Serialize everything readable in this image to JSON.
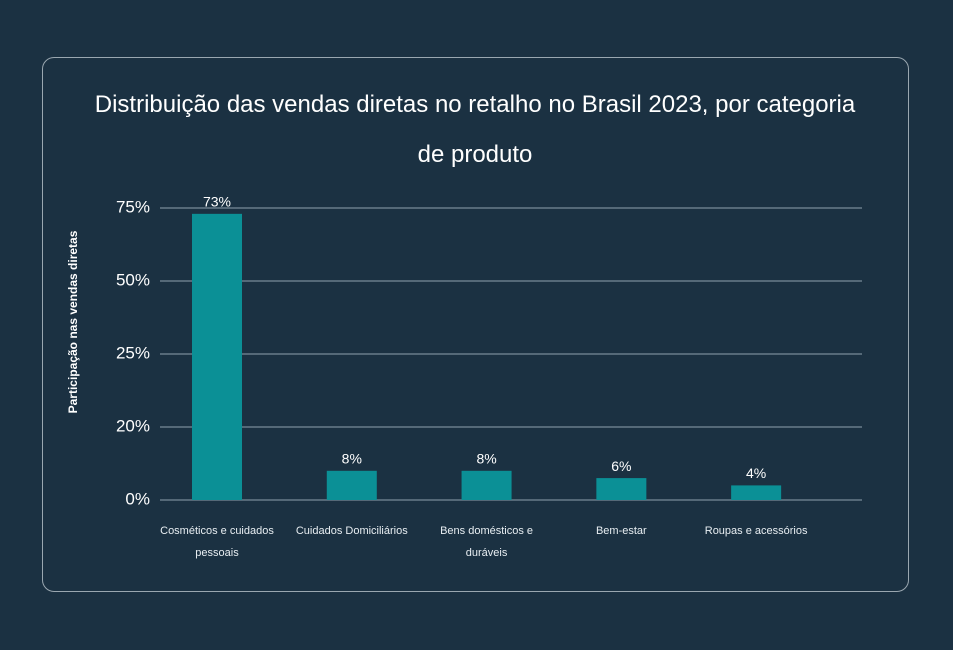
{
  "chart_data": {
    "type": "bar",
    "title": "Distribuição das vendas diretas no retalho no Brasil 2023, por categoria de produto",
    "y_label": "Participação nas vendas diretas",
    "categories": [
      "Cosméticos e cuidados pessoais",
      "Cuidados Domiciliários",
      "Bens domésticos e duráveis",
      "Bem-estar",
      "Roupas e acessórios"
    ],
    "values": [
      73,
      8,
      8,
      6,
      4
    ],
    "value_labels": [
      "73%",
      "8%",
      "8%",
      "6%",
      "4%"
    ],
    "color": "#0b9096",
    "ylim": [
      0,
      75
    ],
    "yticks": [
      {
        "value": 0,
        "label": "0%"
      },
      {
        "value": 20,
        "label": "20%"
      },
      {
        "value": 25,
        "label": "25%"
      },
      {
        "value": 50,
        "label": "50%"
      },
      {
        "value": 75,
        "label": "75%"
      }
    ],
    "grid": true
  }
}
